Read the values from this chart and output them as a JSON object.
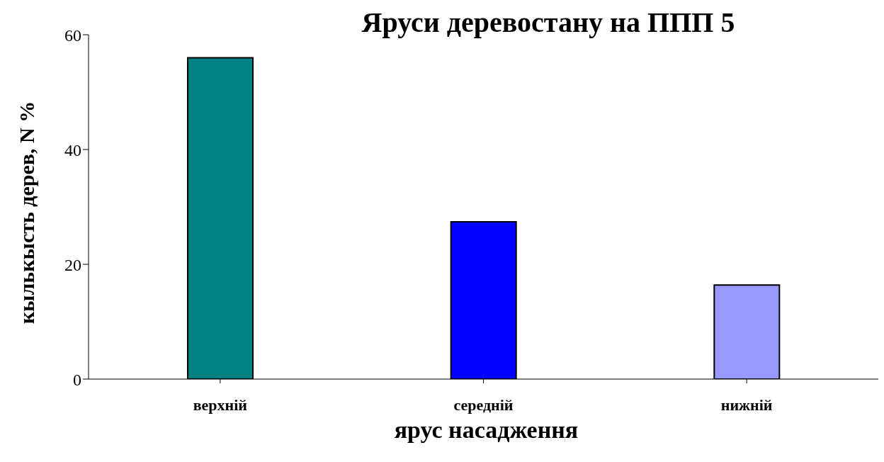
{
  "chart_data": {
    "type": "bar",
    "title": "Яруси деревостану на ППП 5",
    "xlabel": "ярус насадження",
    "ylabel": "кылькысть дерев, N %",
    "categories": [
      "верхній",
      "середній",
      "нижній"
    ],
    "values": [
      56,
      27.4,
      16.4
    ],
    "colors": [
      "#008080",
      "#0000ff",
      "#9999ff"
    ],
    "ylim": [
      0,
      60
    ],
    "yticks": [
      0,
      20,
      40,
      60
    ],
    "grid": false,
    "legend": false
  }
}
